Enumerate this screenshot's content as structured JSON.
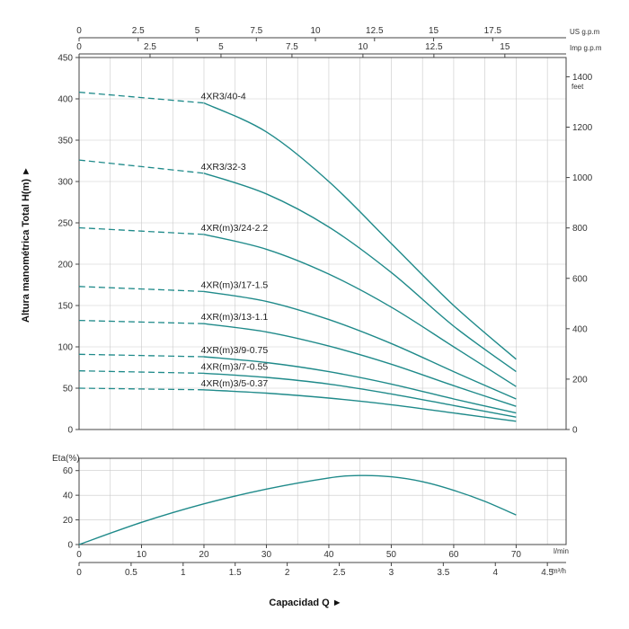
{
  "chart_data": [
    {
      "type": "line",
      "ylabel": "Altura manométrica Total H(m) ►",
      "ylim": [
        0,
        450
      ],
      "y_ticks": [
        0,
        50,
        100,
        150,
        200,
        250,
        300,
        350,
        400,
        450
      ],
      "right_axis": {
        "label": "feet",
        "ticks": [
          0,
          200,
          400,
          600,
          800,
          1000,
          1200,
          1400
        ]
      },
      "top_axis_us": {
        "label": "US g.p.m",
        "ticks": [
          0,
          2.5,
          5,
          7.5,
          10,
          12.5,
          15,
          17.5
        ]
      },
      "top_axis_imp": {
        "label": "Imp g.p.m",
        "ticks": [
          0,
          2.5,
          5,
          7.5,
          10,
          12.5,
          15
        ]
      },
      "x_unit": "l/min",
      "xlim": [
        0,
        78
      ],
      "grid": true,
      "curve_color": "#1f8a8a",
      "series": [
        {
          "name": "4XR3/40-4",
          "x": [
            0,
            20,
            30,
            40,
            50,
            60,
            70
          ],
          "y": [
            408,
            395,
            360,
            300,
            225,
            150,
            85
          ]
        },
        {
          "name": "4XR3/32-3",
          "x": [
            0,
            20,
            30,
            40,
            50,
            60,
            70
          ],
          "y": [
            326,
            310,
            285,
            245,
            190,
            125,
            70
          ]
        },
        {
          "name": "4XR(m)3/24-2.2",
          "x": [
            0,
            20,
            30,
            40,
            50,
            60,
            70
          ],
          "y": [
            244,
            236,
            218,
            188,
            148,
            100,
            52
          ]
        },
        {
          "name": "4XR(m)3/17-1.5",
          "x": [
            0,
            20,
            30,
            40,
            50,
            60,
            70
          ],
          "y": [
            173,
            167,
            155,
            133,
            104,
            70,
            37
          ]
        },
        {
          "name": "4XR(m)3/13-1.1",
          "x": [
            0,
            20,
            30,
            40,
            50,
            60,
            70
          ],
          "y": [
            132,
            128,
            118,
            101,
            79,
            53,
            28
          ]
        },
        {
          "name": "4XR(m)3/9-0.75",
          "x": [
            0,
            20,
            30,
            40,
            50,
            60,
            70
          ],
          "y": [
            91,
            88,
            81,
            70,
            55,
            37,
            20
          ]
        },
        {
          "name": "4XR(m)3/7-0.55",
          "x": [
            0,
            20,
            30,
            40,
            50,
            60,
            70
          ],
          "y": [
            71,
            68,
            63,
            55,
            43,
            29,
            15
          ]
        },
        {
          "name": "4XR(m)3/5-0.37",
          "x": [
            0,
            20,
            30,
            40,
            50,
            60,
            70
          ],
          "y": [
            50,
            48,
            44,
            38,
            30,
            20,
            10
          ]
        }
      ]
    },
    {
      "type": "line",
      "ylabel": "Eta(%)",
      "ylim": [
        0,
        70
      ],
      "y_ticks": [
        0,
        20,
        40,
        60
      ],
      "x_unit": "l/min",
      "x_ticks": [
        0,
        10,
        20,
        30,
        40,
        50,
        60,
        70
      ],
      "xlim": [
        0,
        78
      ],
      "x2_unit": "m³/h",
      "x2_ticks": [
        0,
        0.5,
        1,
        1.5,
        2,
        2.5,
        3,
        3.5,
        4,
        4.5
      ],
      "grid": true,
      "curve_color": "#1f8a8a",
      "series": [
        {
          "x": [
            0,
            10,
            20,
            30,
            40,
            45,
            50,
            55,
            60,
            65,
            70
          ],
          "y": [
            0,
            18,
            33,
            45,
            54,
            56,
            55,
            51,
            44,
            35,
            24
          ]
        }
      ]
    }
  ],
  "footer": {
    "xlabel": "Capacidad Q ►"
  }
}
